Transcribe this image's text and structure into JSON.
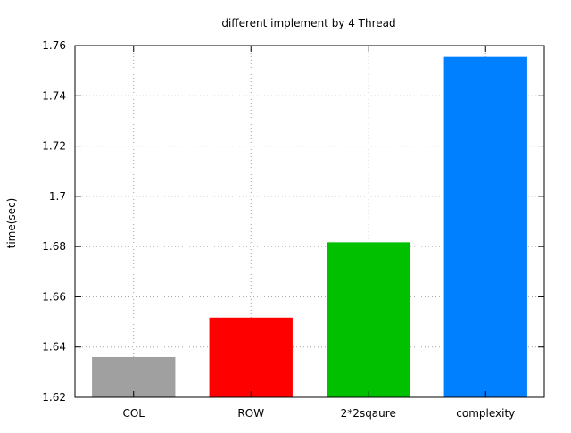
{
  "chart_data": {
    "type": "bar",
    "title": "different implement by 4 Thread",
    "xlabel": "",
    "ylabel": "time(sec)",
    "categories": [
      "COL",
      "ROW",
      "2*2sqaure",
      "complexity"
    ],
    "values": [
      1.636,
      1.6517,
      1.6817,
      1.7555
    ],
    "colors": [
      "#a0a0a0",
      "#ff0000",
      "#00c000",
      "#0080ff"
    ],
    "ylim": [
      1.62,
      1.76
    ],
    "yticks": [
      1.62,
      1.64,
      1.66,
      1.68,
      1.7,
      1.72,
      1.74,
      1.76
    ],
    "ytick_labels": [
      "1.62",
      "1.64",
      "1.66",
      "1.68",
      "1.7",
      "1.72",
      "1.74",
      "1.76"
    ],
    "grid": true,
    "legend": false
  }
}
